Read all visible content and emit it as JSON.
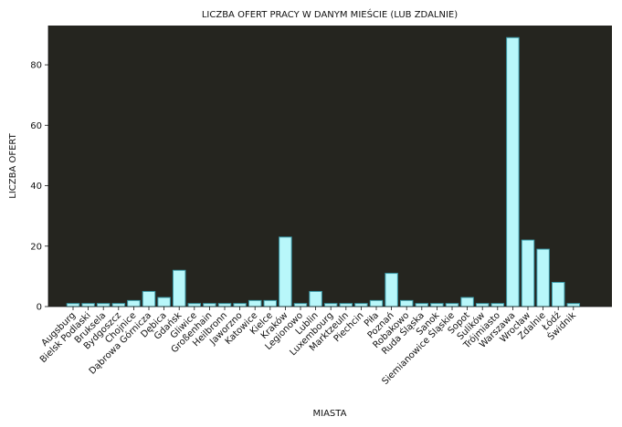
{
  "chart_data": {
    "type": "bar",
    "title": "LICZBA OFERT PRACY W DANYM MIEŚCIE (LUB ZDALNIE)",
    "xlabel": "MIASTA",
    "ylabel": "LICZBA OFERT",
    "ylim": [
      0,
      93
    ],
    "yticks": [
      0,
      20,
      40,
      60,
      80
    ],
    "grid": false,
    "colors": {
      "bar": "#b8f7fa",
      "bar_edge": "#3a9aa8",
      "plot_bg": "#25251f"
    },
    "categories": [
      "Augsburg",
      "Bielsk Podlaski",
      "Bruksela",
      "Bydgoszcz",
      "Chojnice",
      "Dąbrowa Górnicza",
      "Dębica",
      "Gdańsk",
      "Gliwice",
      "Großenhain",
      "Heilbronn",
      "Jaworzno",
      "Katowice",
      "Kielce",
      "Kraków",
      "Legionowo",
      "Lublin",
      "Luxembourg",
      "Marktzeuln",
      "Piechcin",
      "Piła",
      "Poznań",
      "Robakowo",
      "Ruda Śląska",
      "Sanok",
      "Siemianowice Śląskie",
      "Sopot",
      "Sulików",
      "Trójmiasto",
      "Warszawa",
      "Wrocław",
      "Zdalnie",
      "Łódź",
      "Świdnik"
    ],
    "values": [
      1,
      1,
      1,
      1,
      2,
      5,
      3,
      12,
      1,
      1,
      1,
      1,
      2,
      2,
      23,
      1,
      5,
      1,
      1,
      1,
      2,
      11,
      2,
      1,
      1,
      1,
      3,
      1,
      1,
      89,
      22,
      19,
      8,
      1
    ]
  }
}
